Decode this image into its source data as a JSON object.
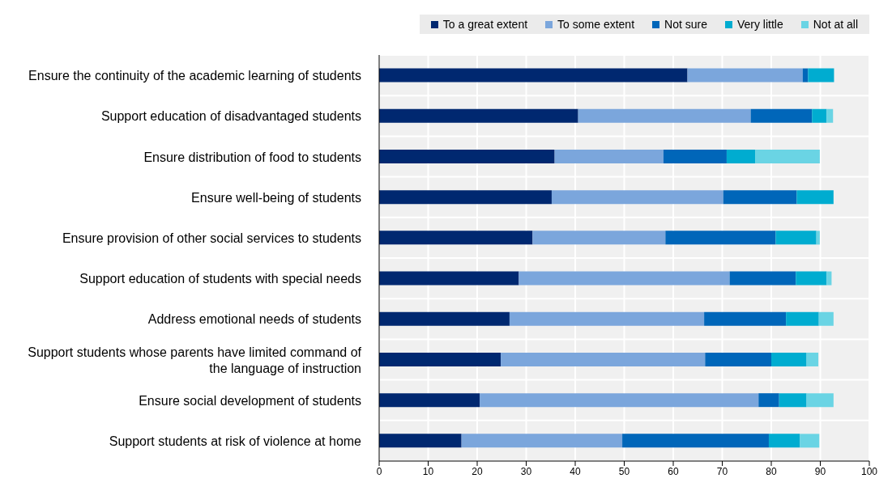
{
  "chart_data": {
    "type": "bar",
    "orientation": "horizontal",
    "stacked": true,
    "categories": [
      "Ensure the continuity of the academic learning of students",
      "Support education of disadvantaged students",
      "Ensure distribution of food to students",
      "Ensure well-being of students",
      "Ensure provision of other social services to students",
      "Support education of students with special needs",
      "Address emotional needs of students",
      "Support students whose parents have limited command of the language of instruction",
      "Ensure social development of students",
      "Support students at risk of violence at home"
    ],
    "series": [
      {
        "name": "To a great extent",
        "color": "#002870",
        "values": [
          62.9,
          40.6,
          35.8,
          35.2,
          31.3,
          28.5,
          26.6,
          24.8,
          20.5,
          16.8
        ]
      },
      {
        "name": "To some extent",
        "color": "#7ba6dc",
        "values": [
          23.5,
          35.2,
          22.2,
          35.0,
          27.1,
          43.0,
          39.7,
          41.7,
          56.9,
          32.8
        ]
      },
      {
        "name": "Not sure",
        "color": "#0066b9",
        "values": [
          1.1,
          12.5,
          12.9,
          15.0,
          22.5,
          13.5,
          16.7,
          13.5,
          4.2,
          29.9
        ]
      },
      {
        "name": "Very little",
        "color": "#00acd0",
        "values": [
          5.3,
          3.0,
          5.8,
          7.5,
          8.3,
          6.3,
          6.7,
          7.2,
          5.6,
          6.3
        ]
      },
      {
        "name": "Not at all",
        "color": "#6ad4e4",
        "values": [
          0,
          1.3,
          13.2,
          0,
          0.7,
          1.0,
          3.0,
          2.4,
          5.5,
          4.0
        ]
      }
    ],
    "xlim": [
      0,
      100
    ],
    "xticks": [
      0,
      10,
      20,
      30,
      40,
      50,
      60,
      70,
      80,
      90,
      100
    ],
    "grid": true,
    "legend": "top right"
  }
}
